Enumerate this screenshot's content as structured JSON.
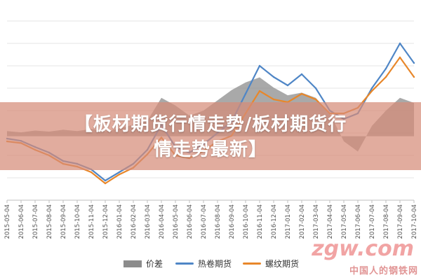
{
  "banner": {
    "line1": "【板材期货行情走势/板材期货行",
    "line2": "情走势最新】"
  },
  "watermark": {
    "logo": "zgw.com",
    "tagline": "中国人的钢铁网"
  },
  "colors": {
    "spread": "#8c8c8c",
    "hot_coil": "#4f86c6",
    "rebar": "#e8872a",
    "banner": "#d68c78"
  },
  "chart_data": {
    "type": "line",
    "grid": true,
    "legend_position": "bottom",
    "x": [
      "2015-05-04",
      "2015-06-04",
      "2015-07-04",
      "2015-08-04",
      "2015-09-04",
      "2015-10-04",
      "2015-11-04",
      "2015-12-04",
      "2016-01-04",
      "2016-02-04",
      "2016-03-04",
      "2016-04-04",
      "2016-05-04",
      "2016-06-04",
      "2016-07-04",
      "2016-08-04",
      "2016-09-04",
      "2016-10-04",
      "2016-11-04",
      "2016-12-04",
      "2017-01-04",
      "2017-02-04",
      "2017-03-04",
      "2017-04-04",
      "2017-05-04",
      "2017-06-04",
      "2017-07-04",
      "2017-08-04",
      "2017-09-04",
      "2017-10-04"
    ],
    "series": [
      {
        "name": "价差",
        "type": "area",
        "values": [
          20,
          15,
          22,
          18,
          25,
          20,
          28,
          18,
          30,
          45,
          60,
          150,
          120,
          80,
          100,
          140,
          180,
          210,
          230,
          190,
          160,
          170,
          150,
          90,
          -20,
          -60,
          40,
          100,
          150,
          130
        ]
      },
      {
        "name": "热卷期货",
        "type": "line",
        "values": [
          2600,
          2560,
          2450,
          2350,
          2200,
          2150,
          2050,
          1850,
          2000,
          2150,
          2400,
          2850,
          2450,
          2350,
          2500,
          2700,
          2900,
          3400,
          3900,
          3700,
          3550,
          3750,
          3500,
          3100,
          2950,
          3050,
          3500,
          3850,
          4300,
          3950
        ]
      },
      {
        "name": "螺纹期货",
        "type": "line",
        "values": [
          2550,
          2520,
          2400,
          2300,
          2150,
          2100,
          2000,
          1800,
          1960,
          2080,
          2320,
          2620,
          2300,
          2250,
          2380,
          2550,
          2650,
          3050,
          3450,
          3300,
          3250,
          3400,
          3300,
          3050,
          3050,
          3150,
          3450,
          3700,
          4050,
          3700
        ]
      }
    ]
  }
}
